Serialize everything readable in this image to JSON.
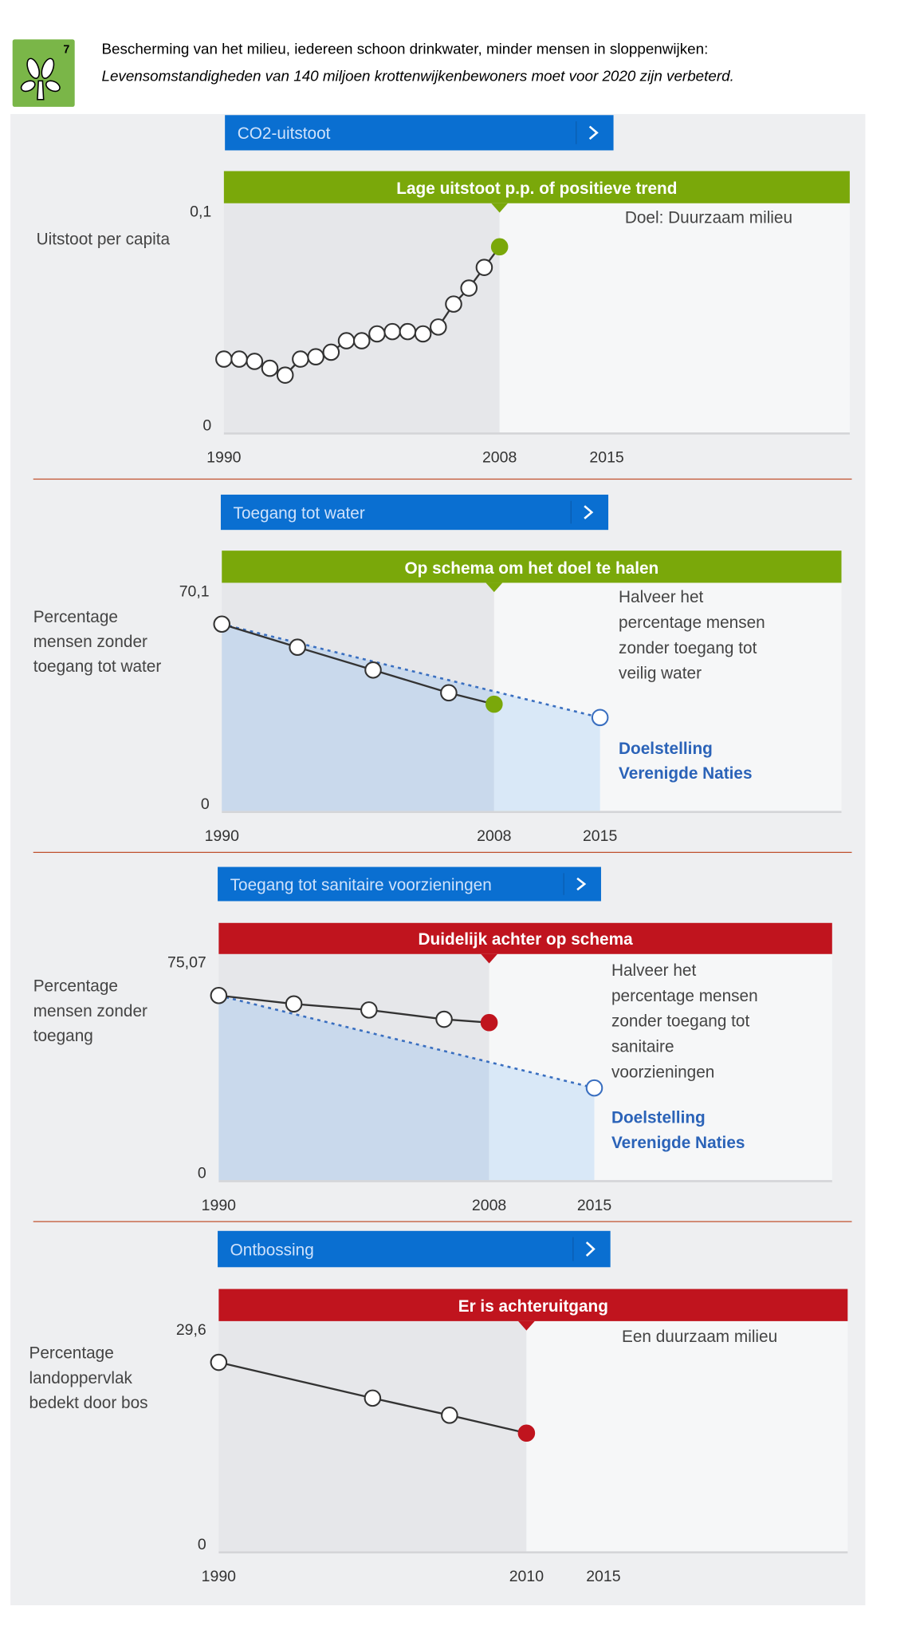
{
  "header": {
    "goal_number": "7",
    "line1": "Bescherming van het milieu, iedereen schoon drinkwater, minder mensen in sloppenwijken:",
    "line2": "Levensomstandigheden van 140 miljoen krottenwijkenbewoners moet voor 2020 zijn verbeterd.",
    "icon": "tree-icon",
    "icon_color": "#7ab648"
  },
  "colors": {
    "tab": "#0a6fd1",
    "on_track": "#7aa80a",
    "behind": "#c0141e",
    "target_line": "#3a6fc0",
    "divider": "#c0502d"
  },
  "chart_data": [
    {
      "type": "line",
      "tab_label": "CO2-uitstoot",
      "status": "Lage uitstoot p.p. of positieve trend",
      "status_color": "#7aa80a",
      "ylabel": [
        "Uitstoot per capita"
      ],
      "ylim": [
        0,
        0.1
      ],
      "ytick_labels": [
        "0,1",
        "0"
      ],
      "xtick_labels": [
        "1990",
        "2008",
        "2015"
      ],
      "x": [
        1990,
        1991,
        1992,
        1993,
        1994,
        1995,
        1996,
        1997,
        1998,
        1999,
        2000,
        2001,
        2002,
        2003,
        2004,
        2005,
        2006,
        2007,
        2008
      ],
      "values": [
        0.032,
        0.032,
        0.031,
        0.028,
        0.025,
        0.032,
        0.033,
        0.035,
        0.04,
        0.04,
        0.043,
        0.044,
        0.044,
        0.043,
        0.046,
        0.056,
        0.063,
        0.072,
        0.081
      ],
      "latest_year": 2008,
      "annotation": [
        "Doel: Duurzaam milieu"
      ],
      "annotation_bold": []
    },
    {
      "type": "line",
      "tab_label": "Toegang tot water",
      "status": "Op schema om het doel te halen",
      "status_color": "#7aa80a",
      "ylabel": [
        "Percentage",
        "mensen zonder",
        "toegang tot water"
      ],
      "ylim": [
        0,
        70.1
      ],
      "ytick_labels": [
        "70,1",
        "0"
      ],
      "xtick_labels": [
        "1990",
        "2008",
        "2015"
      ],
      "x": [
        1990,
        1995,
        2000,
        2005,
        2008
      ],
      "values": [
        57.4,
        50.3,
        43.3,
        36.3,
        32.8
      ],
      "latest_year": 2008,
      "target": {
        "x": 2015,
        "value": 28.7
      },
      "annotation": [
        "Halveer het",
        "percentage mensen",
        "zonder toegang tot",
        "veilig water"
      ],
      "annotation_bold": [
        "Doelstelling",
        "Verenigde Naties"
      ]
    },
    {
      "type": "line",
      "tab_label": "Toegang tot sanitaire voorzieningen",
      "status": "Duidelijk achter op schema",
      "status_color": "#c0141e",
      "ylabel": [
        "Percentage",
        "mensen zonder",
        "toegang"
      ],
      "ylim": [
        0,
        75.07
      ],
      "ytick_labels": [
        "75,07",
        "0"
      ],
      "xtick_labels": [
        "1990",
        "2008",
        "2015"
      ],
      "x": [
        1990,
        1995,
        2000,
        2005,
        2008
      ],
      "values": [
        61.3,
        58.5,
        56.5,
        53.4,
        52.3
      ],
      "latest_year": 2008,
      "target": {
        "x": 2015,
        "value": 30.6
      },
      "annotation": [
        "Halveer het",
        "percentage mensen",
        "zonder toegang tot",
        "sanitaire",
        "voorzieningen"
      ],
      "annotation_bold": [
        "Doelstelling",
        "Verenigde Naties"
      ]
    },
    {
      "type": "line",
      "tab_label": "Ontbossing",
      "status": "Er is achteruitgang",
      "status_color": "#c0141e",
      "ylabel": [
        "Percentage",
        "landoppervlak",
        "bedekt door bos"
      ],
      "ylim": [
        0,
        29.6
      ],
      "ytick_labels": [
        "29,6",
        "0"
      ],
      "xtick_labels": [
        "1990",
        "2010",
        "2015"
      ],
      "x": [
        1990,
        2000,
        2005,
        2010
      ],
      "values": [
        24.3,
        19.7,
        17.5,
        15.2
      ],
      "latest_year": 2010,
      "annotation": [
        "Een duurzaam milieu"
      ],
      "annotation_bold": []
    }
  ]
}
